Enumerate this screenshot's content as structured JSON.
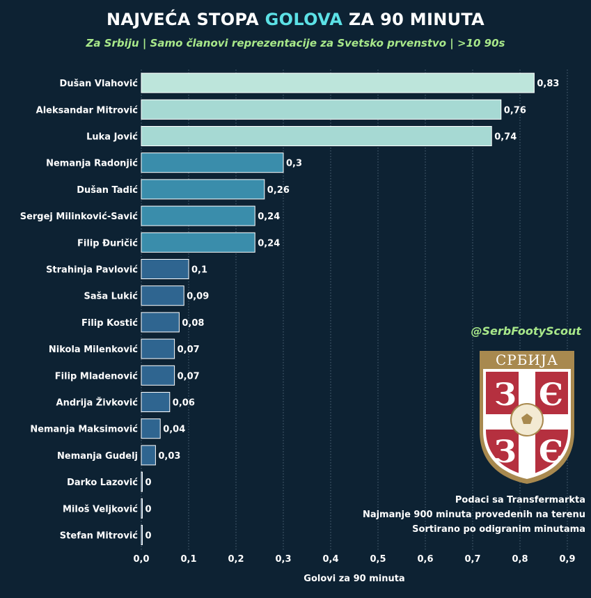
{
  "header": {
    "title_pre": "NAJVEĆA STOPA ",
    "title_hl": "GOLOVA",
    "title_post": " ZA 90 MINUTA",
    "subtitle": "Za Srbiju | Samo članovi reprezentacije za Svetsko prvenstvo  | >10 90s"
  },
  "handle": "@SerbFootyScout",
  "crest": {
    "label": "СРБИЈА"
  },
  "notes": [
    "Podaci sa Transfermarkta",
    "Najmanje 900 minuta provedenih na terenu",
    "Sortirano po odigranim minutama"
  ],
  "colors": {
    "background": "#0d2233",
    "title_highlight": "#5ce1e6",
    "subtitle": "#a8e88a",
    "bar_high": "#bfe6dc",
    "bar_mid": "#3a8fab",
    "bar_low": "#2f6590"
  },
  "chart_data": {
    "type": "bar",
    "orientation": "horizontal",
    "xlabel": "Golovi za 90 minuta",
    "xlim": [
      0,
      0.9
    ],
    "xticks": [
      0.0,
      0.1,
      0.2,
      0.3,
      0.4,
      0.5,
      0.6,
      0.7,
      0.8,
      0.9
    ],
    "xtick_labels": [
      "0,0",
      "0,1",
      "0,2",
      "0,3",
      "0,4",
      "0,5",
      "0,6",
      "0,7",
      "0,8",
      "0,9"
    ],
    "grid": "vertical dotted",
    "categories": [
      "Dušan Vlahović",
      "Aleksandar Mitrović",
      "Luka Jović",
      "Nemanja Radonjić",
      "Dušan Tadić",
      "Sergej Milinković-Savić",
      "Filip Đuričić",
      "Strahinja Pavlović",
      "Saša Lukić",
      "Filip Kostić",
      "Nikola Milenković",
      "Filip Mladenović",
      "Andrija Živković",
      "Nemanja Maksimović",
      "Nemanja Gudelj",
      "Darko Lazović",
      "Miloš Veljković",
      "Stefan Mitrović"
    ],
    "values": [
      0.83,
      0.76,
      0.74,
      0.3,
      0.26,
      0.24,
      0.24,
      0.1,
      0.09,
      0.08,
      0.07,
      0.07,
      0.06,
      0.04,
      0.03,
      0,
      0,
      0
    ],
    "value_labels": [
      "0,83",
      "0,76",
      "0,74",
      "0,3",
      "0,26",
      "0,24",
      "0,24",
      "0,1",
      "0,09",
      "0,08",
      "0,07",
      "0,07",
      "0,06",
      "0,04",
      "0,03",
      "0",
      "0",
      "0"
    ]
  }
}
